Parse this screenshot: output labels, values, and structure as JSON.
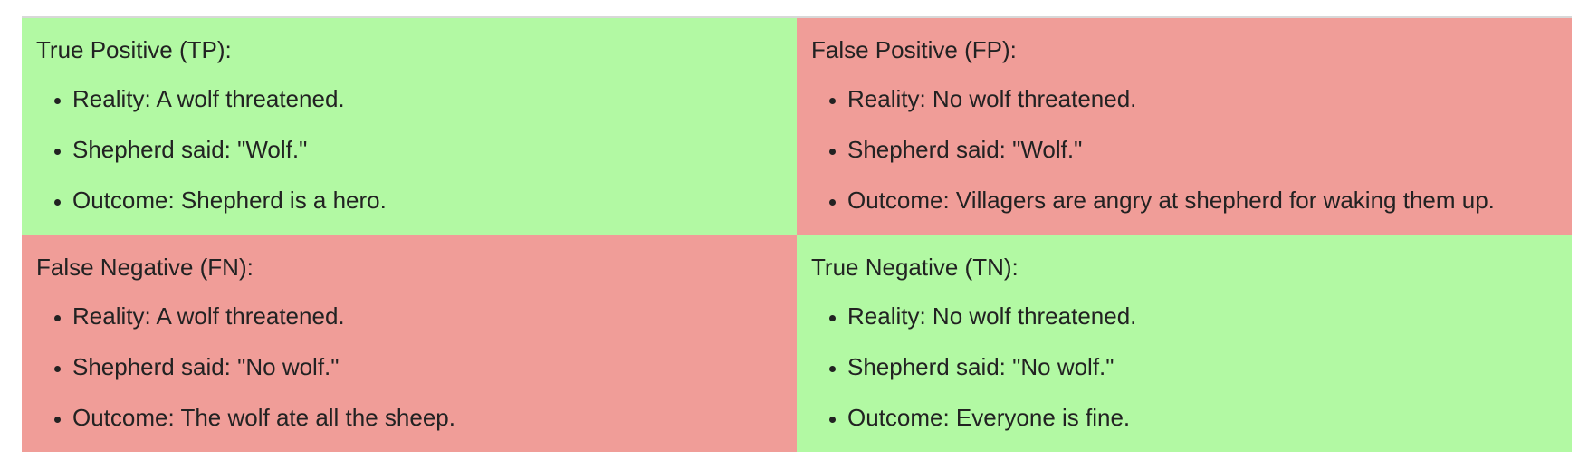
{
  "colors": {
    "correct": "#b2f9a3",
    "incorrect": "#f09d98"
  },
  "cells": {
    "tp": {
      "title": "True Positive (TP):",
      "items": [
        "Reality: A wolf threatened.",
        "Shepherd said: \"Wolf.\"",
        "Outcome: Shepherd is a hero."
      ]
    },
    "fp": {
      "title": "False Positive (FP):",
      "items": [
        "Reality: No wolf threatened.",
        "Shepherd said: \"Wolf.\"",
        "Outcome: Villagers are angry at shepherd for waking them up."
      ]
    },
    "fn": {
      "title": "False Negative (FN):",
      "items": [
        "Reality: A wolf threatened.",
        "Shepherd said: \"No wolf.\"",
        "Outcome: The wolf ate all the sheep."
      ]
    },
    "tn": {
      "title": "True Negative (TN):",
      "items": [
        "Reality: No wolf threatened.",
        "Shepherd said: \"No wolf.\"",
        "Outcome: Everyone is fine."
      ]
    }
  }
}
